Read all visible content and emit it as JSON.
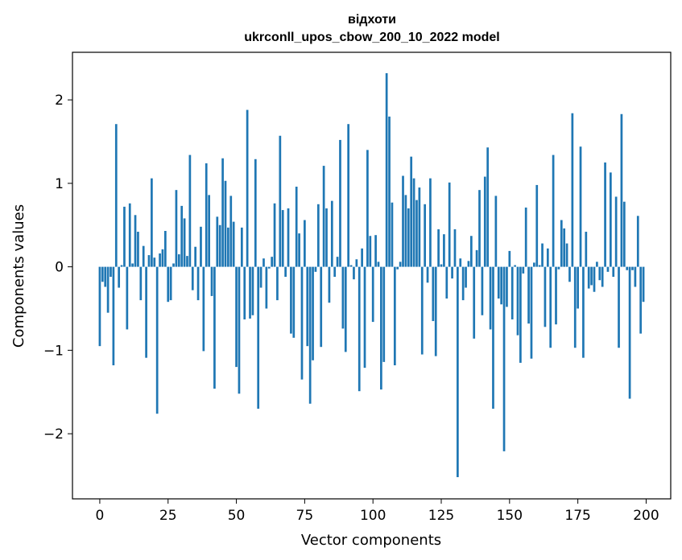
{
  "chart_data": {
    "type": "bar",
    "title": "відхоти",
    "subtitle": "ukrconll_upos_cbow_200_10_2022 model",
    "xlabel": "Vector components",
    "ylabel": "Components values",
    "xlim": [
      -10,
      209
    ],
    "ylim": [
      -2.78,
      2.57
    ],
    "xticks": [
      0,
      25,
      50,
      75,
      100,
      125,
      150,
      175,
      200
    ],
    "xtick_labels": [
      "0",
      "25",
      "50",
      "75",
      "100",
      "125",
      "150",
      "175",
      "200"
    ],
    "yticks": [
      -2,
      -1,
      0,
      1,
      2
    ],
    "ytick_labels": [
      "−2",
      "−1",
      "0",
      "1",
      "2"
    ],
    "grid": false,
    "bar_color": "#1f77b4",
    "values": [
      -0.95,
      -0.18,
      -0.24,
      -0.55,
      -0.12,
      -1.18,
      1.71,
      -0.25,
      0.02,
      0.72,
      -0.75,
      0.76,
      0.04,
      0.62,
      0.42,
      -0.4,
      0.25,
      -1.09,
      0.14,
      1.06,
      0.11,
      -1.76,
      0.16,
      0.21,
      0.43,
      -0.42,
      -0.4,
      0.04,
      0.92,
      0.15,
      0.73,
      0.58,
      0.13,
      1.34,
      -0.28,
      0.24,
      -0.4,
      0.48,
      -1.01,
      1.24,
      0.86,
      -0.35,
      -1.46,
      0.6,
      0.5,
      1.3,
      1.03,
      0.47,
      0.85,
      0.54,
      -1.2,
      -1.52,
      0.47,
      -0.63,
      1.88,
      -0.62,
      -0.58,
      1.29,
      -1.7,
      -0.25,
      0.1,
      -0.5,
      -0.02,
      0.12,
      0.76,
      -0.4,
      1.57,
      0.68,
      -0.12,
      0.7,
      -0.8,
      -0.85,
      0.96,
      0.4,
      -1.35,
      0.56,
      -0.95,
      -1.64,
      -1.12,
      -0.06,
      0.75,
      -0.96,
      1.21,
      0.7,
      -0.43,
      0.79,
      -0.12,
      0.12,
      1.52,
      -0.74,
      -1.02,
      1.71,
      0.02,
      -0.15,
      0.09,
      -1.49,
      0.22,
      -1.21,
      1.4,
      0.37,
      -0.66,
      0.38,
      0.06,
      -1.47,
      -1.14,
      2.32,
      1.8,
      0.77,
      -1.18,
      -0.03,
      0.06,
      1.09,
      0.86,
      0.7,
      1.32,
      1.06,
      0.8,
      0.95,
      -1.05,
      0.75,
      -0.19,
      1.06,
      -0.65,
      -1.07,
      0.45,
      0.03,
      0.39,
      -0.38,
      1.01,
      -0.14,
      0.45,
      -2.52,
      0.1,
      -0.4,
      -0.25,
      0.07,
      0.37,
      -0.86,
      0.2,
      0.92,
      -0.58,
      1.08,
      1.43,
      -0.75,
      -1.7,
      0.85,
      -0.38,
      -0.45,
      -2.21,
      -0.48,
      0.19,
      -0.63,
      0.02,
      -0.82,
      -1.15,
      -0.08,
      0.71,
      -0.68,
      -1.1,
      0.05,
      0.98,
      0.02,
      0.28,
      -0.72,
      0.22,
      -0.97,
      1.34,
      -0.69,
      -0.03,
      0.56,
      0.46,
      0.28,
      -0.18,
      1.84,
      -0.97,
      -0.5,
      1.44,
      -1.09,
      0.42,
      -0.26,
      -0.22,
      -0.3,
      0.06,
      -0.16,
      -0.24,
      1.25,
      -0.06,
      1.13,
      -0.12,
      0.84,
      -0.97,
      1.83,
      0.78,
      -0.04,
      -1.58,
      -0.04,
      -0.24,
      0.61,
      -0.8,
      -0.42
    ]
  }
}
